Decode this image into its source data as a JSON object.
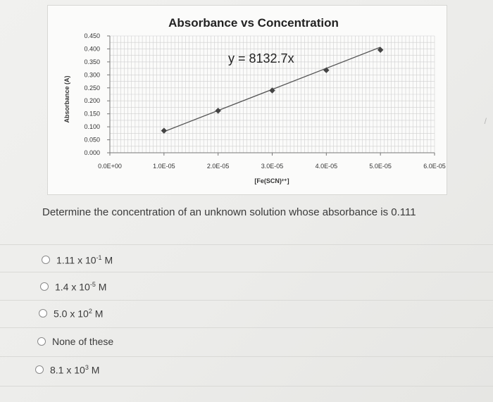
{
  "chart_data": {
    "type": "scatter",
    "title": "Absorbance vs Concentration",
    "ylabel": "Absorbance (A)",
    "xlabel": "[Fe(SCN)²⁺]",
    "equation": "y = 8132.7x",
    "xlim": [
      0,
      6e-05
    ],
    "ylim": [
      0,
      0.45
    ],
    "y_ticks": [
      "0.450",
      "0.400",
      "0.350",
      "0.300",
      "0.250",
      "0.200",
      "0.150",
      "0.100",
      "0.050",
      "0.000"
    ],
    "x_ticks": [
      "0.0E+00",
      "1.0E-05",
      "2.0E-05",
      "3.0E-05",
      "4.0E-05",
      "5.0E-05",
      "6.0E-05"
    ],
    "grid": true,
    "series": [
      {
        "x": [
          1e-05,
          2e-05,
          3e-05,
          4e-05,
          5e-05
        ],
        "y": [
          0.085,
          0.162,
          0.24,
          0.318,
          0.396
        ]
      }
    ],
    "trendline": {
      "slope": 8132.7,
      "x_range": [
        1e-05,
        5e-05
      ]
    }
  },
  "colors": {
    "line": "#555555",
    "marker": "#444444",
    "grid": "#cfcfcf"
  },
  "question": {
    "text": "Determine the concentration of an unknown solution whose absorbance is 0.111"
  },
  "options": [
    {
      "mantissa": "1.11 x 10",
      "exponent": "-1",
      "unit": " M"
    },
    {
      "mantissa": "1.4 x 10",
      "exponent": "-5",
      "unit": " M"
    },
    {
      "mantissa": "5.0 x 10",
      "exponent": "2",
      "unit": " M"
    },
    {
      "text": "None of these"
    },
    {
      "mantissa": "8.1 x 10",
      "exponent": "3",
      "unit": " M"
    }
  ]
}
